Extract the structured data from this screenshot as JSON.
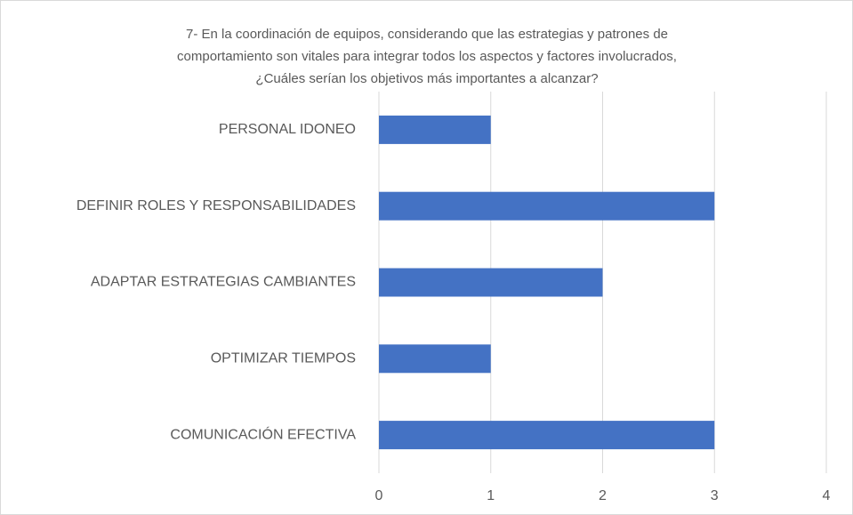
{
  "chart_data": {
    "type": "bar",
    "orientation": "horizontal",
    "title": [
      "7- En la coordinación de equipos, considerando que las estrategias y patrones de",
      "comportamiento son vitales para integrar todos los aspectos y factores involucrados,",
      "¿Cuáles serían los objetivos más importantes a alcanzar?"
    ],
    "categories": [
      "PERSONAL IDONEO",
      "DEFINIR ROLES Y RESPONSABILIDADES",
      "ADAPTAR ESTRATEGIAS CAMBIANTES",
      "OPTIMIZAR TIEMPOS",
      "COMUNICACIÓN EFECTIVA"
    ],
    "values": [
      1,
      3,
      2,
      1,
      3
    ],
    "color": "#4472c4",
    "xlim": [
      0,
      4
    ],
    "xticks": [
      0,
      1,
      2,
      3,
      4
    ],
    "grid": true
  }
}
